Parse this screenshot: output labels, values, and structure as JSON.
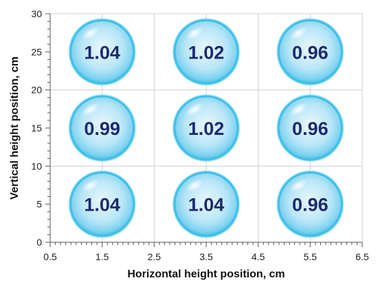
{
  "chart_data": {
    "type": "scatter",
    "title": "",
    "xlabel": "Horizontal height position, cm",
    "ylabel": "Vertical height position, cm",
    "xlim": [
      0.5,
      6.5
    ],
    "ylim": [
      0,
      30
    ],
    "x_ticks": [
      "0.5",
      "1.5",
      "2.5",
      "3.5",
      "4.5",
      "5.5",
      "6.5"
    ],
    "y_ticks": [
      "0",
      "5",
      "10",
      "15",
      "20",
      "25",
      "30"
    ],
    "grid": true,
    "points": [
      {
        "x": 1.5,
        "y": 25,
        "value": "1.04"
      },
      {
        "x": 3.5,
        "y": 25,
        "value": "1.02"
      },
      {
        "x": 5.5,
        "y": 25,
        "value": "0.96"
      },
      {
        "x": 1.5,
        "y": 15,
        "value": "0.99"
      },
      {
        "x": 3.5,
        "y": 15,
        "value": "1.02"
      },
      {
        "x": 5.5,
        "y": 15,
        "value": "0.96"
      },
      {
        "x": 1.5,
        "y": 5,
        "value": "1.04"
      },
      {
        "x": 3.5,
        "y": 5,
        "value": "1.04"
      },
      {
        "x": 5.5,
        "y": 5,
        "value": "0.96"
      }
    ],
    "colors": {
      "bubble_fill": "#bfe9f8",
      "bubble_rim": "#3ec0e8",
      "label": "#1d2a6e",
      "grid": "#cfcfcf"
    }
  }
}
